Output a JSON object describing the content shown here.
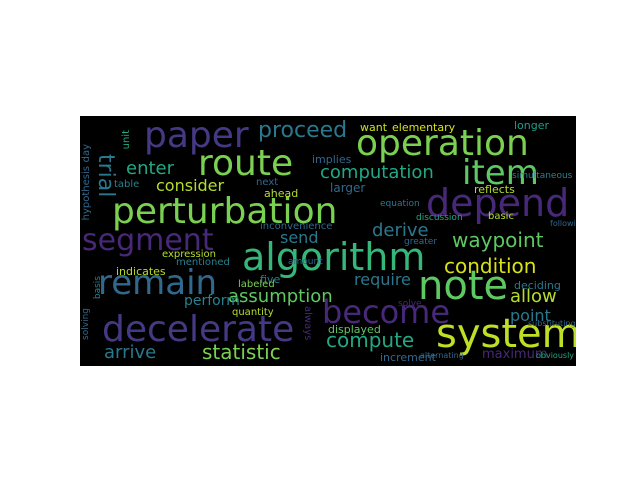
{
  "figure": {
    "background": "#ffffff",
    "cloud_background": "#000000",
    "colormap": "viridis"
  },
  "words": {
    "paper": "paper",
    "route": "route",
    "operation": "operation",
    "item": "item",
    "perturbation": "perturbation",
    "depend": "depend",
    "segment": "segment",
    "algorithm": "algorithm",
    "remain": "remain",
    "note": "note",
    "decelerate": "decelerate",
    "become": "become",
    "system": "system",
    "proceed": "proceed",
    "computation": "computation",
    "trial": "trial",
    "enter": "enter",
    "consider": "consider",
    "send": "send",
    "derive": "derive",
    "waypoint": "waypoint",
    "condition": "condition",
    "assumption": "assumption",
    "allow": "allow",
    "require": "require",
    "perform": "perform",
    "statistic": "statistic",
    "arrive": "arrive",
    "compute": "compute",
    "displayed": "displayed",
    "point": "point",
    "maximum": "maximum",
    "increment": "increment",
    "want": "want",
    "elementary": "elementary",
    "longer": "longer",
    "implies": "implies",
    "larger": "larger",
    "reflects": "reflects",
    "basic": "basic",
    "deciding": "deciding",
    "equation": "equation",
    "discussion": "discussion",
    "table": "table",
    "next": "next",
    "ahead": "ahead",
    "expression": "expression",
    "inconvenience": "inconvenience",
    "indicates": "indicates",
    "mentioned": "mentioned",
    "five": "five",
    "labeled": "labeled",
    "quantity": "quantity",
    "always": "always",
    "hypothesis": "hypothesis",
    "solving": "solving",
    "basis": "basis",
    "unit": "unit",
    "amount": "amount",
    "greater": "greater",
    "simultaneous": "simultaneous",
    "solve": "solve",
    "alternating": "alternating",
    "obviously": "obviously",
    "following": "following",
    "substituting": "substituting",
    "day": "day"
  }
}
